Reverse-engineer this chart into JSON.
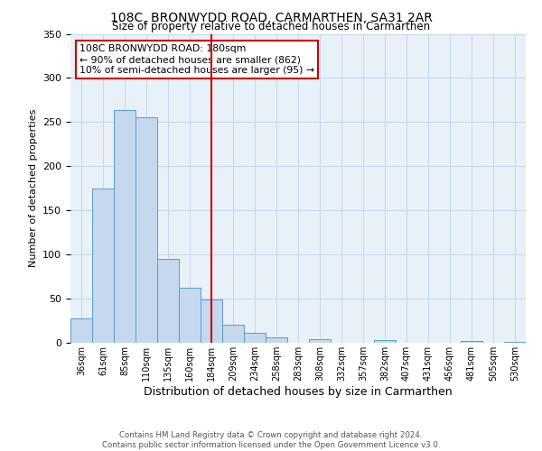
{
  "title": "108C, BRONWYDD ROAD, CARMARTHEN, SA31 2AR",
  "subtitle": "Size of property relative to detached houses in Carmarthen",
  "xlabel": "Distribution of detached houses by size in Carmarthen",
  "ylabel": "Number of detached properties",
  "bar_labels": [
    "36sqm",
    "61sqm",
    "85sqm",
    "110sqm",
    "135sqm",
    "160sqm",
    "184sqm",
    "209sqm",
    "234sqm",
    "258sqm",
    "283sqm",
    "308sqm",
    "332sqm",
    "357sqm",
    "382sqm",
    "407sqm",
    "431sqm",
    "456sqm",
    "481sqm",
    "505sqm",
    "530sqm"
  ],
  "bar_values": [
    28,
    175,
    264,
    255,
    95,
    62,
    49,
    20,
    11,
    6,
    0,
    4,
    0,
    0,
    3,
    0,
    0,
    0,
    2,
    0,
    1
  ],
  "bar_color": "#c5d8ed",
  "bar_edgecolor": "#5b9bd5",
  "vline_x": 6,
  "vline_color": "#cc0000",
  "annotation_title": "108C BRONWYDD ROAD: 180sqm",
  "annotation_line1": "← 90% of detached houses are smaller (862)",
  "annotation_line2": "10% of semi-detached houses are larger (95) →",
  "annotation_box_edgecolor": "#cc0000",
  "ylim": [
    0,
    350
  ],
  "yticks": [
    0,
    50,
    100,
    150,
    200,
    250,
    300,
    350
  ],
  "footer1": "Contains HM Land Registry data © Crown copyright and database right 2024.",
  "footer2": "Contains public sector information licensed under the Open Government Licence v3.0.",
  "bg_color": "#ffffff",
  "plot_bg_color": "#e8f0f8",
  "grid_color": "#c8d8e8"
}
